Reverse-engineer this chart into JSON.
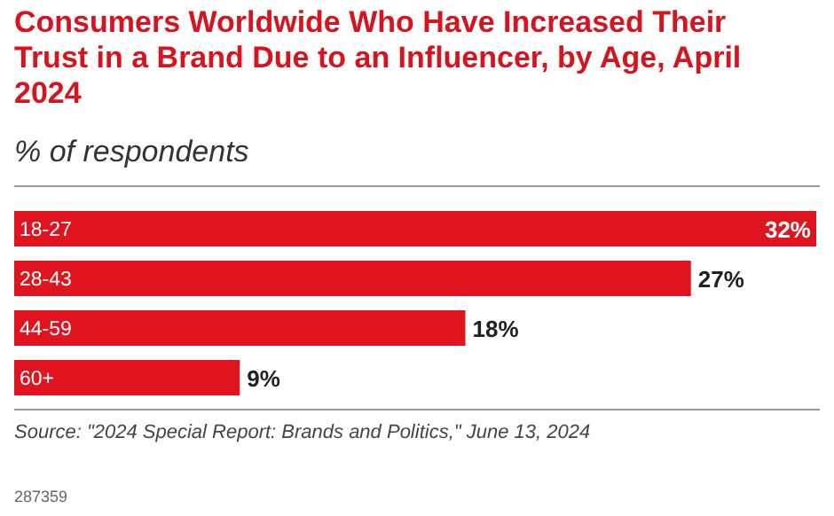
{
  "chart_data": {
    "type": "bar",
    "orientation": "horizontal",
    "title": "Consumers Worldwide Who Have Increased Their Trust in a Brand Due to an Influencer, by Age, April 2024",
    "subtitle": "% of respondents",
    "categories": [
      "18-27",
      "28-43",
      "44-59",
      "60+"
    ],
    "values": [
      32,
      27,
      18,
      9
    ],
    "color": "#e0141e",
    "value_labels": [
      "32%",
      "27%",
      "18%",
      "9%"
    ],
    "annotations": [
      "Source: \"2024 Special Report: Brands and Politics,\" June 13, 2024",
      "287359"
    ]
  }
}
